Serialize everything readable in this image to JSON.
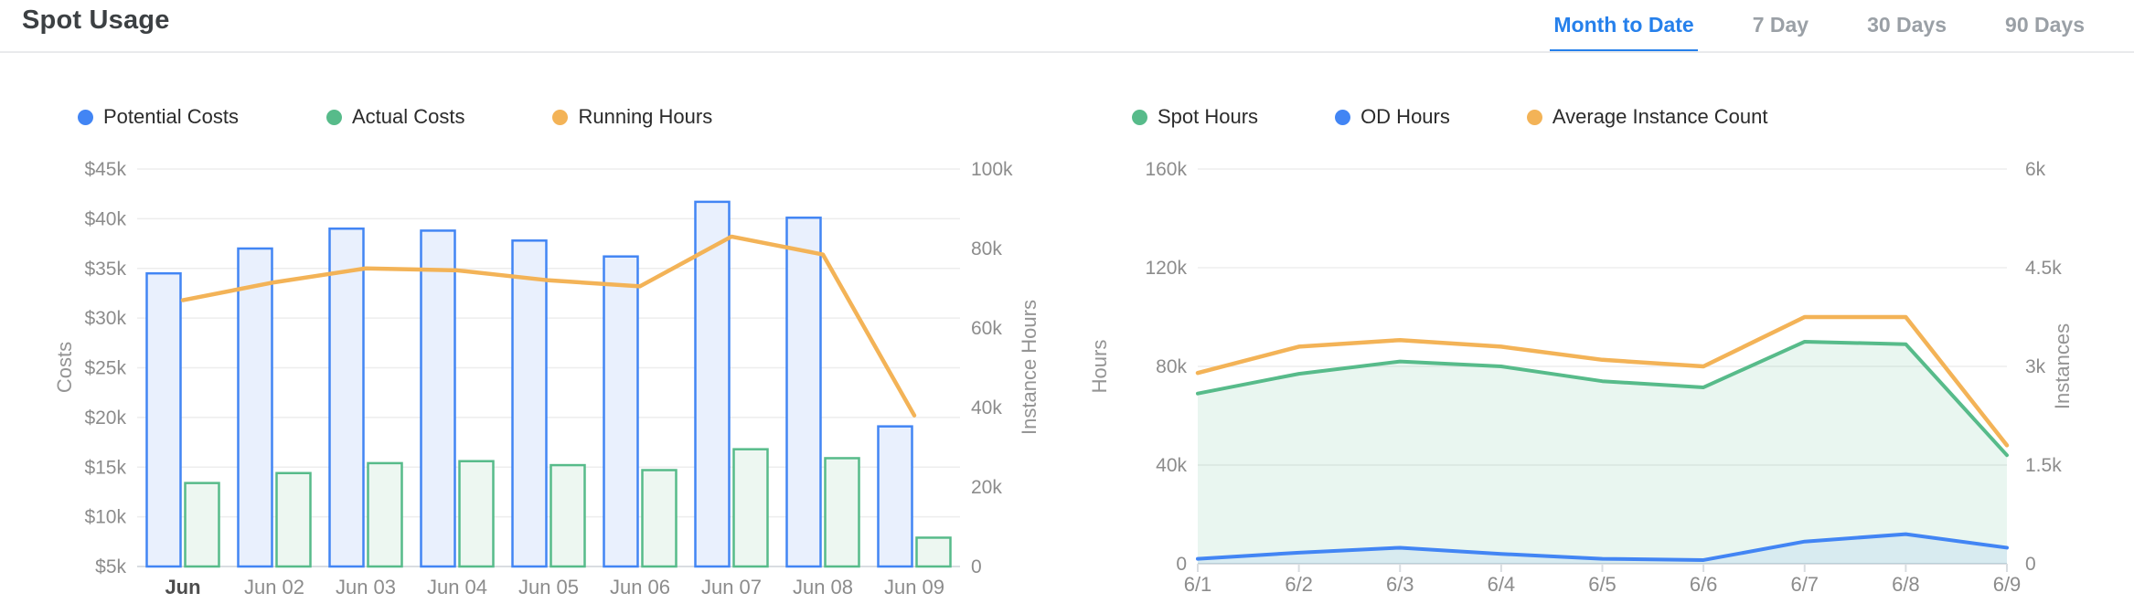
{
  "header": {
    "title": "Spot Usage",
    "tabs": [
      {
        "label": "Month to Date",
        "active": true
      },
      {
        "label": "7 Day",
        "active": false
      },
      {
        "label": "30 Days",
        "active": false
      },
      {
        "label": "90 Days",
        "active": false
      }
    ]
  },
  "colors": {
    "blue": "#4285F4",
    "blueFill": "#E9F0FD",
    "blueArea": "rgba(66,133,244,0.10)",
    "green": "#57BB8A",
    "greenFill": "#EDF7F1",
    "greenArea": "rgba(87,187,138,0.13)",
    "orange": "#F3B357",
    "grid": "#EDEDED",
    "axis": "#D9DDE1",
    "tick": "#8C8C8C",
    "tickStrong": "#4D4D4D",
    "axisName": "#949494",
    "legendText": "#2B2B2B",
    "title": "#3C4043",
    "accent": "#2680EB",
    "tabInactive": "#9AA0A6",
    "divider": "#E9EAEC"
  },
  "chart_data": [
    {
      "type": "bar",
      "name": "costs-chart",
      "categories": [
        "Jun",
        "Jun 02",
        "Jun 03",
        "Jun 04",
        "Jun 05",
        "Jun 06",
        "Jun 07",
        "Jun 08",
        "Jun 09"
      ],
      "series": [
        {
          "name": "Potential Costs",
          "type": "bar",
          "axis": "left",
          "color": "blue",
          "values": [
            34500,
            37000,
            39000,
            38800,
            37800,
            36200,
            41700,
            40100,
            19100
          ]
        },
        {
          "name": "Actual Costs",
          "type": "bar",
          "axis": "left",
          "color": "green",
          "values": [
            13400,
            14400,
            15400,
            15600,
            15200,
            14700,
            16800,
            15900,
            7900
          ]
        },
        {
          "name": "Running Hours",
          "type": "line",
          "axis": "right",
          "color": "orange",
          "values": [
            67000,
            71500,
            75000,
            74500,
            72000,
            70500,
            83000,
            78500,
            38000
          ]
        }
      ],
      "left_axis": {
        "label": "Costs",
        "min": 5000,
        "max": 45000,
        "ticks": [
          "$5k",
          "$10k",
          "$15k",
          "$20k",
          "$25k",
          "$30k",
          "$35k",
          "$40k",
          "$45k"
        ]
      },
      "right_axis": {
        "label": "Instance Hours",
        "min": 0,
        "max": 100000,
        "ticks": [
          "0",
          "20k",
          "40k",
          "60k",
          "80k",
          "100k"
        ]
      },
      "grid": true,
      "legend_position": "top"
    },
    {
      "type": "area",
      "name": "usage-chart",
      "categories": [
        "6/1",
        "6/2",
        "6/3",
        "6/4",
        "6/5",
        "6/6",
        "6/7",
        "6/8",
        "6/9"
      ],
      "series": [
        {
          "name": "Spot Hours",
          "type": "area",
          "axis": "left",
          "color": "green",
          "values": [
            69000,
            77000,
            82000,
            80000,
            74000,
            71500,
            90000,
            89000,
            44000
          ]
        },
        {
          "name": "OD Hours",
          "type": "area",
          "axis": "left",
          "color": "blue",
          "values": [
            2000,
            4500,
            6500,
            4000,
            2000,
            1500,
            9000,
            12000,
            6500
          ]
        },
        {
          "name": "Average Instance Count",
          "type": "line",
          "axis": "right",
          "color": "orange",
          "values": [
            2900,
            3300,
            3400,
            3300,
            3100,
            3000,
            3750,
            3750,
            1800
          ]
        }
      ],
      "left_axis": {
        "label": "Hours",
        "min": 0,
        "max": 160000,
        "ticks": [
          "0",
          "40k",
          "80k",
          "120k",
          "160k"
        ]
      },
      "right_axis": {
        "label": "Instances",
        "min": 0,
        "max": 6000,
        "ticks": [
          "0",
          "1.5k",
          "3k",
          "4.5k",
          "6k"
        ]
      },
      "grid": true,
      "legend_position": "top"
    }
  ]
}
